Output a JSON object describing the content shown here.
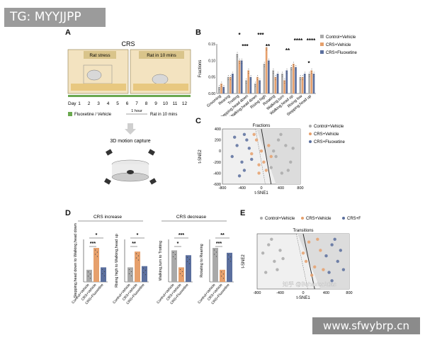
{
  "watermarks": {
    "top": "TG: MYYJJPP",
    "bottom": "www.sfwybrp.cn",
    "center": "知乎 @BehaviorAtlas"
  },
  "panel_a": {
    "letter": "A",
    "title": "CRS",
    "box1": "Rat stress",
    "box2": "Rat in 10 mins",
    "day_label": "Day",
    "days": [
      "1",
      "2",
      "3",
      "4",
      "5",
      "6",
      "7",
      "8",
      "9",
      "10",
      "11",
      "12"
    ],
    "legend_drug": "Fluoxetine / Vehicle",
    "legend_hour": "1 hour",
    "legend_rat": "Rat in 10 mins",
    "capture": "3D motion capture"
  },
  "panel_b": {
    "letter": "B",
    "ylabel": "Fractions",
    "legend": [
      "Control+Vehicle",
      "CRS+Vehicle",
      "CRS+Fluoxetine"
    ],
    "sig_labels": [
      "*",
      "***",
      "***",
      "**",
      "****",
      "****",
      "**",
      "*"
    ]
  },
  "panel_c": {
    "letter": "C",
    "title": "Fractions",
    "xlabel": "t-SNE1",
    "ylabel": "t-SNE2",
    "legend": [
      "Control+Vehicle",
      "CRS+Vehicle",
      "CRS+Fluoxetine"
    ]
  },
  "panel_d": {
    "letter": "D",
    "header_left": "CRS increase",
    "header_right": "CRS decrease",
    "sig": [
      "*",
      "***",
      "*",
      "**",
      "***",
      "*",
      "**",
      "***",
      "*"
    ]
  },
  "panel_e": {
    "letter": "E",
    "title": "Transitions",
    "xlabel": "t-SNE1",
    "ylabel": "t-SNE2",
    "legend": [
      "Control+Vehicle",
      "CRS+Vehicle",
      "CRS+Fluoxetine"
    ]
  },
  "colors": {
    "control": "#a9a9a9",
    "crs": "#e6a06c",
    "flx": "#5b6f9e",
    "green": "#6aa84f",
    "wm": "#8a8a8a"
  },
  "chart_data": [
    {
      "type": "bar",
      "title": "",
      "xlabel": "",
      "ylabel": "Fractions",
      "ylim": [
        0,
        0.15
      ],
      "y_ticks": [
        "0.00",
        "0.05",
        "0.10",
        "0.15"
      ],
      "categories": [
        "Grooming",
        "Rearing",
        "Trotting",
        "Stepping,head down",
        "Walking,head down",
        "Rising high",
        "Rotating",
        "Walking,turn",
        "Walking,head up",
        "Rising low",
        "Stepping,head up"
      ],
      "series": [
        {
          "name": "Control+Vehicle",
          "values": [
            0.02,
            0.05,
            0.12,
            0.04,
            0.03,
            0.09,
            0.07,
            0.06,
            0.08,
            0.05,
            0.06
          ]
        },
        {
          "name": "CRS+Vehicle",
          "values": [
            0.03,
            0.05,
            0.1,
            0.07,
            0.05,
            0.14,
            0.05,
            0.04,
            0.09,
            0.05,
            0.07
          ]
        },
        {
          "name": "CRS+Fluoxetine",
          "values": [
            0.02,
            0.06,
            0.1,
            0.05,
            0.04,
            0.1,
            0.06,
            0.07,
            0.08,
            0.06,
            0.06
          ]
        }
      ]
    },
    {
      "type": "scatter",
      "title": "Fractions",
      "xlabel": "t-SNE1",
      "ylabel": "t-SNE2",
      "x_ticks": [
        "-800",
        "-400",
        "0",
        "400",
        "800"
      ],
      "y_ticks": [
        "-600",
        "-400",
        "-200",
        "0",
        "200",
        "400"
      ],
      "xlim": [
        -800,
        800
      ],
      "ylim": [
        -600,
        400
      ],
      "series": [
        {
          "name": "Control+Vehicle",
          "points": [
            [
              400,
              300
            ],
            [
              500,
              100
            ],
            [
              300,
              -100
            ],
            [
              600,
              -200
            ],
            [
              420,
              -400
            ],
            [
              200,
              -300
            ],
            [
              650,
              50
            ],
            [
              350,
              200
            ],
            [
              550,
              -350
            ],
            [
              250,
              0
            ]
          ]
        },
        {
          "name": "CRS+Vehicle",
          "points": [
            [
              -100,
              200
            ],
            [
              50,
              -200
            ],
            [
              -50,
              -400
            ],
            [
              150,
              100
            ],
            [
              -200,
              -50
            ],
            [
              100,
              -350
            ],
            [
              -150,
              300
            ],
            [
              0,
              0
            ],
            [
              200,
              -100
            ],
            [
              -50,
              -250
            ]
          ]
        },
        {
          "name": "CRS+Fluoxetine",
          "points": [
            [
              -500,
              100
            ],
            [
              -400,
              -200
            ],
            [
              -300,
              200
            ],
            [
              -600,
              -100
            ],
            [
              -350,
              -350
            ],
            [
              -250,
              50
            ],
            [
              -550,
              250
            ],
            [
              -450,
              -450
            ],
            [
              -200,
              -150
            ],
            [
              -350,
              300
            ]
          ]
        }
      ]
    },
    {
      "type": "bar",
      "title": "CRS increase",
      "categories": [
        "Control+Vehicle",
        "CRS+Vehicle",
        "CRS+Fluoxetine"
      ],
      "panels": [
        {
          "ylabel": "Stepping,head down to Walking,head down",
          "values": [
            0.1,
            0.28,
            0.12
          ]
        },
        {
          "ylabel": "Rising high to Walking,head up",
          "values": [
            0.12,
            0.25,
            0.13
          ]
        }
      ]
    },
    {
      "type": "bar",
      "title": "CRS decrease",
      "categories": [
        "Control+Vehicle",
        "CRS+Vehicle",
        "CRS+Fluoxetine"
      ],
      "panels": [
        {
          "ylabel": "Walking,turn to Trotting",
          "values": [
            0.26,
            0.12,
            0.22
          ]
        },
        {
          "ylabel": "Rotating to Rearing",
          "values": [
            0.28,
            0.1,
            0.24
          ]
        }
      ]
    },
    {
      "type": "scatter",
      "title": "Transitions",
      "xlabel": "t-SNE1",
      "ylabel": "t-SNE2",
      "x_ticks": [
        "-800",
        "-400",
        "0",
        "400",
        "800"
      ],
      "xlim": [
        -800,
        800
      ],
      "ylim": [
        -600,
        400
      ],
      "series": [
        {
          "name": "Control+Vehicle",
          "points": [
            [
              -600,
              200
            ],
            [
              -500,
              -100
            ],
            [
              -650,
              -300
            ],
            [
              -400,
              100
            ],
            [
              -550,
              300
            ],
            [
              -450,
              -250
            ],
            [
              -700,
              50
            ],
            [
              -350,
              -50
            ]
          ]
        },
        {
          "name": "CRS+Vehicle",
          "points": [
            [
              100,
              250
            ],
            [
              200,
              -200
            ],
            [
              0,
              50
            ],
            [
              300,
              100
            ],
            [
              150,
              -350
            ],
            [
              250,
              300
            ],
            [
              50,
              -100
            ],
            [
              350,
              -250
            ]
          ]
        },
        {
          "name": "CRS+Fluoxetine",
          "points": [
            [
              500,
              200
            ],
            [
              600,
              -100
            ],
            [
              450,
              -300
            ],
            [
              650,
              100
            ],
            [
              550,
              300
            ],
            [
              400,
              0
            ],
            [
              700,
              -250
            ],
            [
              500,
              -450
            ]
          ]
        }
      ]
    }
  ]
}
